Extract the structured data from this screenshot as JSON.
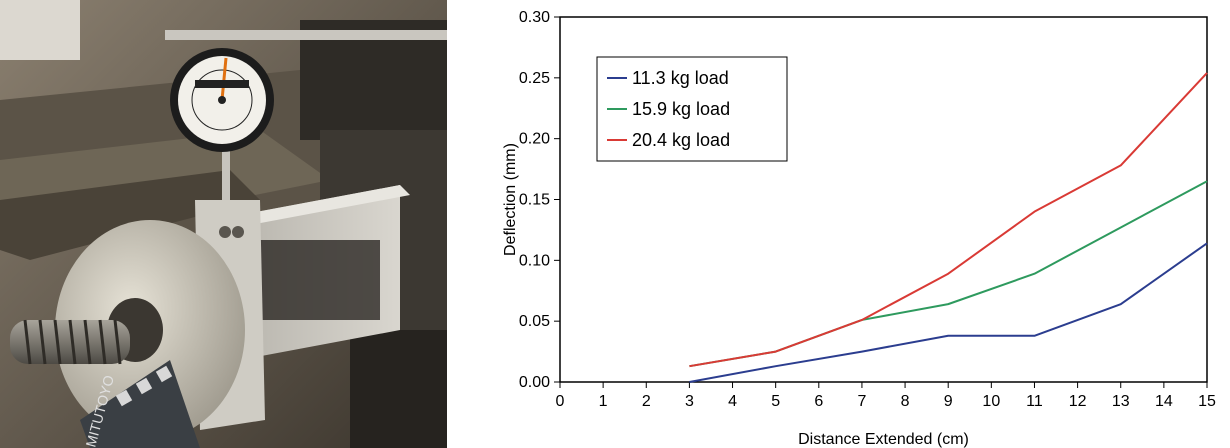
{
  "photo": {
    "description_icon": "dial-indicator-photo",
    "gauge_brand_text": "MITUTOYO"
  },
  "chart_data": {
    "type": "line",
    "title": "",
    "xlabel": "Distance Extended (cm)",
    "ylabel": "Deflection (mm)",
    "xlim": [
      0,
      15
    ],
    "ylim": [
      0,
      0.3
    ],
    "x_ticks": [
      0,
      1,
      2,
      3,
      4,
      5,
      6,
      7,
      8,
      9,
      10,
      11,
      12,
      13,
      14,
      15
    ],
    "y_ticks": [
      0.0,
      0.05,
      0.1,
      0.15,
      0.2,
      0.25,
      0.3
    ],
    "y_tick_labels": [
      "0.00",
      "0.05",
      "0.10",
      "0.15",
      "0.20",
      "0.25",
      "0.30"
    ],
    "grid": false,
    "legend_position": "top-left",
    "series": [
      {
        "name": "11.3 kg load",
        "color": "#2b3d8f",
        "x": [
          3,
          5,
          7,
          9,
          11,
          13,
          15
        ],
        "y": [
          0.0,
          0.013,
          0.025,
          0.038,
          0.038,
          0.064,
          0.114
        ]
      },
      {
        "name": "15.9 kg load",
        "color": "#2e9a5e",
        "x": [
          3,
          5,
          7,
          9,
          11,
          13,
          15
        ],
        "y": [
          0.013,
          0.025,
          0.051,
          0.064,
          0.089,
          0.127,
          0.165
        ]
      },
      {
        "name": "20.4 kg load",
        "color": "#d93a35",
        "x": [
          3,
          5,
          7,
          9,
          11,
          13,
          15
        ],
        "y": [
          0.013,
          0.025,
          0.051,
          0.089,
          0.14,
          0.178,
          0.254
        ]
      }
    ]
  }
}
